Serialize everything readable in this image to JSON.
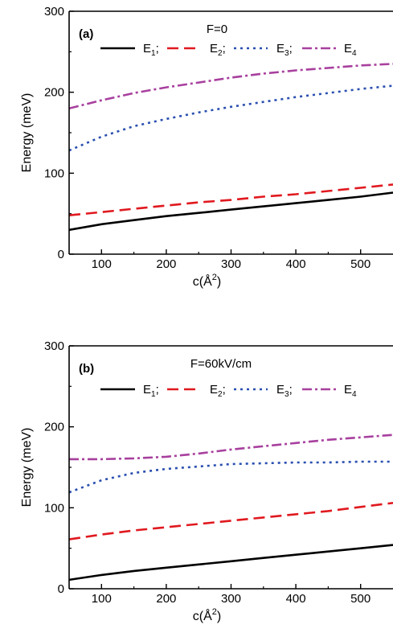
{
  "chart_data": [
    {
      "type": "line",
      "panel_label": "(a)",
      "field_label": "F=0",
      "xlabel": "c(Å",
      "xlabel_sup": "2",
      "xlabel_close": ")",
      "ylabel": "Energy (meV)",
      "xlim": [
        50,
        550
      ],
      "ylim": [
        0,
        300
      ],
      "xticks": [
        100,
        200,
        300,
        400,
        500
      ],
      "yticks": [
        0,
        100,
        200,
        300
      ],
      "legend_position": "top",
      "x": [
        50,
        100,
        150,
        200,
        250,
        300,
        350,
        400,
        450,
        500,
        550
      ],
      "series": [
        {
          "name": "E",
          "sub": "1",
          "sep": ";",
          "color": "#000000",
          "dash": "",
          "values": [
            30,
            37,
            42,
            47,
            51,
            55,
            59,
            63,
            67,
            71,
            76
          ]
        },
        {
          "name": "E",
          "sub": "2",
          "sep": ";",
          "color": "#e0191f",
          "dash": "14,7",
          "values": [
            48,
            52,
            56,
            60,
            64,
            67,
            71,
            74,
            78,
            82,
            86
          ]
        },
        {
          "name": "E",
          "sub": "3",
          "sep": ";",
          "color": "#2a4fb0",
          "dash": "3,5",
          "values": [
            128,
            145,
            158,
            167,
            175,
            182,
            188,
            194,
            199,
            204,
            208
          ]
        },
        {
          "name": "E",
          "sub": "4",
          "sep": "",
          "color": "#a8409e",
          "dash": "12,4,3,4",
          "values": [
            180,
            190,
            199,
            206,
            212,
            218,
            223,
            227,
            230,
            233,
            235
          ]
        }
      ]
    },
    {
      "type": "line",
      "panel_label": "(b)",
      "field_label": "F=60kV/cm",
      "xlabel": "c(Å",
      "xlabel_sup": "2",
      "xlabel_close": ")",
      "ylabel": "Energy (meV)",
      "xlim": [
        50,
        550
      ],
      "ylim": [
        0,
        300
      ],
      "xticks": [
        100,
        200,
        300,
        400,
        500
      ],
      "yticks": [
        0,
        100,
        200,
        300
      ],
      "legend_position": "top",
      "x": [
        50,
        100,
        150,
        200,
        250,
        300,
        350,
        400,
        450,
        500,
        550
      ],
      "series": [
        {
          "name": "E",
          "sub": "1",
          "sep": ";",
          "color": "#000000",
          "dash": "",
          "values": [
            11,
            17,
            22,
            26,
            30,
            34,
            38,
            42,
            46,
            50,
            54
          ]
        },
        {
          "name": "E",
          "sub": "2",
          "sep": ";",
          "color": "#e0191f",
          "dash": "14,7",
          "values": [
            61,
            67,
            72,
            76,
            80,
            84,
            88,
            92,
            96,
            101,
            106
          ]
        },
        {
          "name": "E",
          "sub": "3",
          "sep": ";",
          "color": "#2a4fb0",
          "dash": "3,5",
          "values": [
            119,
            134,
            143,
            148,
            151,
            154,
            155,
            156,
            156,
            157,
            157
          ]
        },
        {
          "name": "E",
          "sub": "4",
          "sep": "",
          "color": "#a8409e",
          "dash": "12,4,3,4",
          "values": [
            160,
            160,
            161,
            163,
            167,
            172,
            176,
            180,
            184,
            187,
            190
          ]
        }
      ]
    }
  ]
}
